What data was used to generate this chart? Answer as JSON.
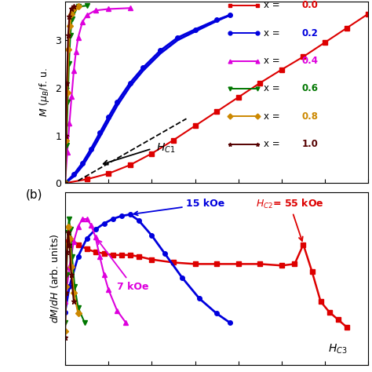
{
  "legend_entries": [
    {
      "label": "x = ",
      "value": "0.0",
      "color": "#dd0000",
      "marker": "s"
    },
    {
      "label": "x = ",
      "value": "0.2",
      "color": "#0000dd",
      "marker": "o"
    },
    {
      "label": "x = ",
      "value": "0.4",
      "color": "#dd00dd",
      "marker": "^"
    },
    {
      "label": "x = ",
      "value": "0.6",
      "color": "#007700",
      "marker": "v"
    },
    {
      "label": "x = ",
      "value": "0.8",
      "color": "#cc8800",
      "marker": "D"
    },
    {
      "label": "x = ",
      "value": "1.0",
      "color": "#550000",
      "marker": "*"
    }
  ],
  "panel_a_ylabel": "$M$ ($\\mu_B$/f. u.",
  "panel_b_ylabel": "$dM/dH$ (arb. units)",
  "bg_color": "#ffffff",
  "xlim": [
    0,
    70
  ],
  "ylim_a": [
    0,
    3.8
  ],
  "ylim_b": [
    0,
    1.15
  ]
}
